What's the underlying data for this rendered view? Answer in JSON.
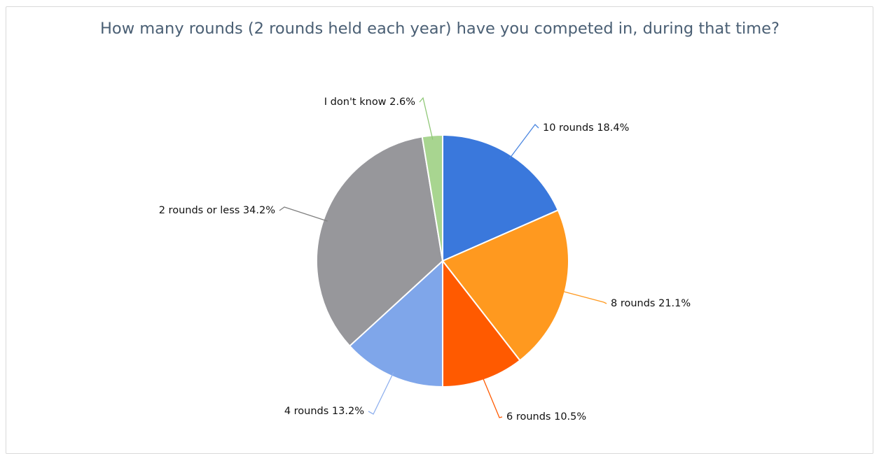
{
  "chart_data": {
    "type": "pie",
    "title": "How many rounds (2 rounds held each year) have you competed in, during that time?",
    "start_angle_deg": 0,
    "direction": "clockwise",
    "slices": [
      {
        "label": "10 rounds",
        "pct_text": "18.4%",
        "value": 18.4,
        "color": "#3a78dc",
        "line_color": "#4a86e0"
      },
      {
        "label": "8 rounds",
        "pct_text": "21.1%",
        "value": 21.1,
        "color": "#ff991f",
        "line_color": "#ff991f"
      },
      {
        "label": "6 rounds",
        "pct_text": "10.5%",
        "value": 10.5,
        "color": "#ff5a00",
        "line_color": "#ff5a00"
      },
      {
        "label": "4 rounds",
        "pct_text": "13.2%",
        "value": 13.2,
        "color": "#7fa6ea",
        "line_color": "#8fb0ee"
      },
      {
        "label": "2 rounds or less",
        "pct_text": "34.2%",
        "value": 34.2,
        "color": "#97979b",
        "line_color": "#808080"
      },
      {
        "label": "I don't know",
        "pct_text": "2.6%",
        "value": 2.6,
        "color": "#a8d590",
        "line_color": "#90c878"
      }
    ]
  }
}
